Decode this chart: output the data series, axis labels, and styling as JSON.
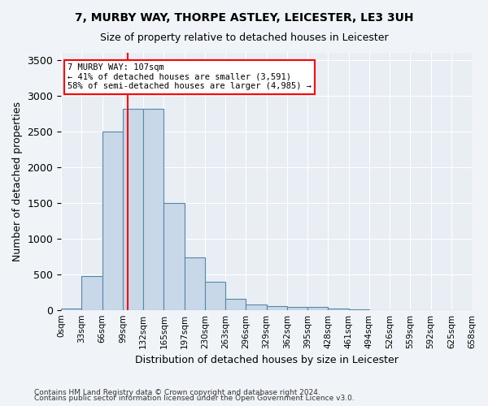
{
  "title1": "7, MURBY WAY, THORPE ASTLEY, LEICESTER, LE3 3UH",
  "title2": "Size of property relative to detached houses in Leicester",
  "xlabel": "Distribution of detached houses by size in Leicester",
  "ylabel": "Number of detached properties",
  "bin_labels": [
    "0sqm",
    "33sqm",
    "66sqm",
    "99sqm",
    "132sqm",
    "165sqm",
    "197sqm",
    "230sqm",
    "263sqm",
    "296sqm",
    "329sqm",
    "362sqm",
    "395sqm",
    "428sqm",
    "461sqm",
    "494sqm",
    "526sqm",
    "559sqm",
    "592sqm",
    "625sqm",
    "658sqm"
  ],
  "bar_values": [
    20,
    470,
    2500,
    2820,
    2820,
    1500,
    740,
    390,
    150,
    75,
    50,
    40,
    40,
    20,
    5,
    0,
    0,
    0,
    0,
    0
  ],
  "bar_color": "#c8d8e8",
  "bar_edge_color": "#5588aa",
  "vline_x": 3.24,
  "vline_color": "red",
  "annotation_text": "7 MURBY WAY: 107sqm\n← 41% of detached houses are smaller (3,591)\n58% of semi-detached houses are larger (4,985) →",
  "annotation_box_color": "white",
  "annotation_box_edge": "red",
  "ylim": [
    0,
    3600
  ],
  "yticks": [
    0,
    500,
    1000,
    1500,
    2000,
    2500,
    3000,
    3500
  ],
  "background_color": "#e8eef4",
  "footer1": "Contains HM Land Registry data © Crown copyright and database right 2024.",
  "footer2": "Contains public sector information licensed under the Open Government Licence v3.0."
}
